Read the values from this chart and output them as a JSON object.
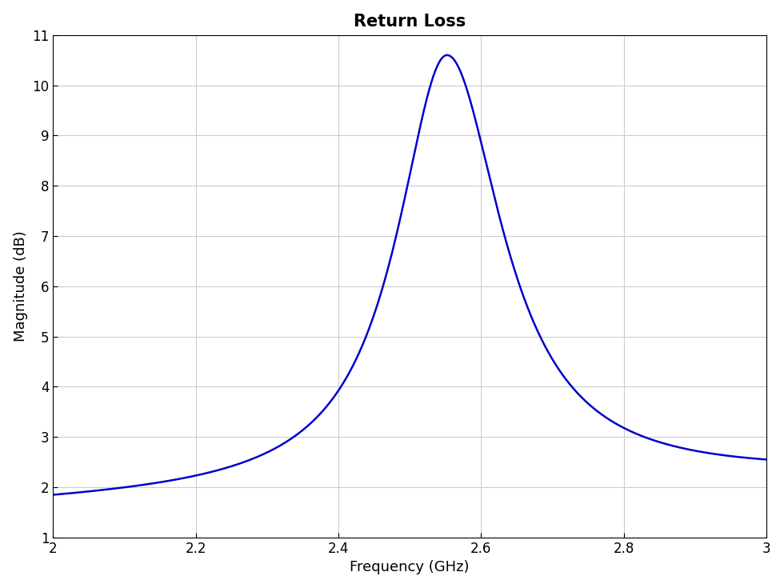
{
  "title": "Return Loss",
  "xlabel": "Frequency (GHz)",
  "ylabel": "Magnitude (dB)",
  "xlim": [
    2,
    3
  ],
  "ylim": [
    1,
    11
  ],
  "xticks": [
    2,
    2.2,
    2.4,
    2.6,
    2.8,
    3
  ],
  "yticks": [
    1,
    2,
    3,
    4,
    5,
    6,
    7,
    8,
    9,
    10,
    11
  ],
  "line_color": "#0000CC",
  "line_width": 1.8,
  "peak_freq": 2.552,
  "peak_val": 10.6,
  "val_at_2": 1.65,
  "val_at_3": 2.18,
  "background_color": "#ffffff",
  "grid_color": "#cccccc",
  "title_fontsize": 15,
  "label_fontsize": 13,
  "tick_fontsize": 12
}
